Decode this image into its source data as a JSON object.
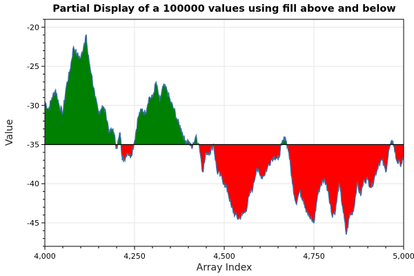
{
  "chart_data": {
    "type": "area",
    "title": "Partial Display of a 100000 values using fill above and below",
    "xlabel": "Array Index",
    "ylabel": "Value",
    "xlim": [
      4000,
      5000
    ],
    "ylim": [
      -48,
      -19
    ],
    "baseline": -35,
    "x_ticks": [
      4000,
      4250,
      4500,
      4750,
      5000
    ],
    "x_tick_labels": [
      "4,000",
      "4,250",
      "4,500",
      "4,750",
      "5,000"
    ],
    "y_ticks": [
      -20,
      -25,
      -30,
      -35,
      -40,
      -45
    ],
    "y_tick_labels": [
      "-20",
      "-25",
      "-30",
      "-35",
      "-40",
      "-45"
    ],
    "grid": true,
    "colors": {
      "line": "#3a6ea5",
      "fill_above": "#008000",
      "fill_below": "#ff0000",
      "baseline": "#000000",
      "grid": "#e6e6e6"
    },
    "series": [
      {
        "x": [
          4000,
          4010,
          4020,
          4030,
          4040,
          4050,
          4060,
          4070,
          4080,
          4090,
          4100,
          4110,
          4115,
          4120,
          4130,
          4140,
          4150,
          4160,
          4170,
          4180,
          4190,
          4200,
          4210,
          4215,
          4220,
          4230,
          4240,
          4250,
          4260,
          4270,
          4280,
          4290,
          4300,
          4310,
          4320,
          4330,
          4340,
          4350,
          4360,
          4370,
          4380,
          4390,
          4400,
          4410,
          4420,
          4430,
          4440,
          4450,
          4460,
          4470,
          4480,
          4490,
          4500,
          4510,
          4520,
          4530,
          4540,
          4550,
          4560,
          4570,
          4580,
          4590,
          4600,
          4610,
          4620,
          4630,
          4640,
          4650,
          4660,
          4670,
          4680,
          4690,
          4700,
          4710,
          4720,
          4730,
          4740,
          4750,
          4760,
          4770,
          4780,
          4790,
          4800,
          4810,
          4820,
          4830,
          4840,
          4850,
          4860,
          4870,
          4880,
          4890,
          4900,
          4910,
          4920,
          4930,
          4940,
          4950,
          4960,
          4970,
          4980,
          4990,
          5000
        ],
        "y": [
          -29.5,
          -30.5,
          -29,
          -28,
          -30,
          -31,
          -27.5,
          -25.5,
          -22.5,
          -23.5,
          -24,
          -22,
          -21,
          -23.5,
          -26,
          -29,
          -31,
          -30,
          -31,
          -33.5,
          -33,
          -35.5,
          -33.5,
          -36.5,
          -37,
          -36,
          -36.5,
          -34.5,
          -31.5,
          -30.5,
          -31,
          -29,
          -29,
          -27,
          -29.5,
          -27.5,
          -28,
          -29.5,
          -30.5,
          -32,
          -33,
          -34.5,
          -34.5,
          -35.5,
          -34,
          -35,
          -38.5,
          -36,
          -36,
          -35,
          -38.5,
          -39,
          -40,
          -41,
          -43,
          -44,
          -44.5,
          -44,
          -43.5,
          -41.5,
          -40.5,
          -38,
          -39,
          -39,
          -38,
          -37,
          -36.5,
          -37,
          -35,
          -34,
          -36,
          -40,
          -42.5,
          -41,
          -42,
          -43.5,
          -44.5,
          -45,
          -41.5,
          -40,
          -39.5,
          -41,
          -44,
          -43.5,
          -40,
          -43,
          -46.5,
          -44,
          -43.5,
          -40,
          -41.5,
          -39.5,
          -39.5,
          -40.5,
          -39,
          -37.5,
          -37,
          -38.5,
          -35.5,
          -34.5,
          -37,
          -37.5,
          -37
        ]
      }
    ]
  }
}
